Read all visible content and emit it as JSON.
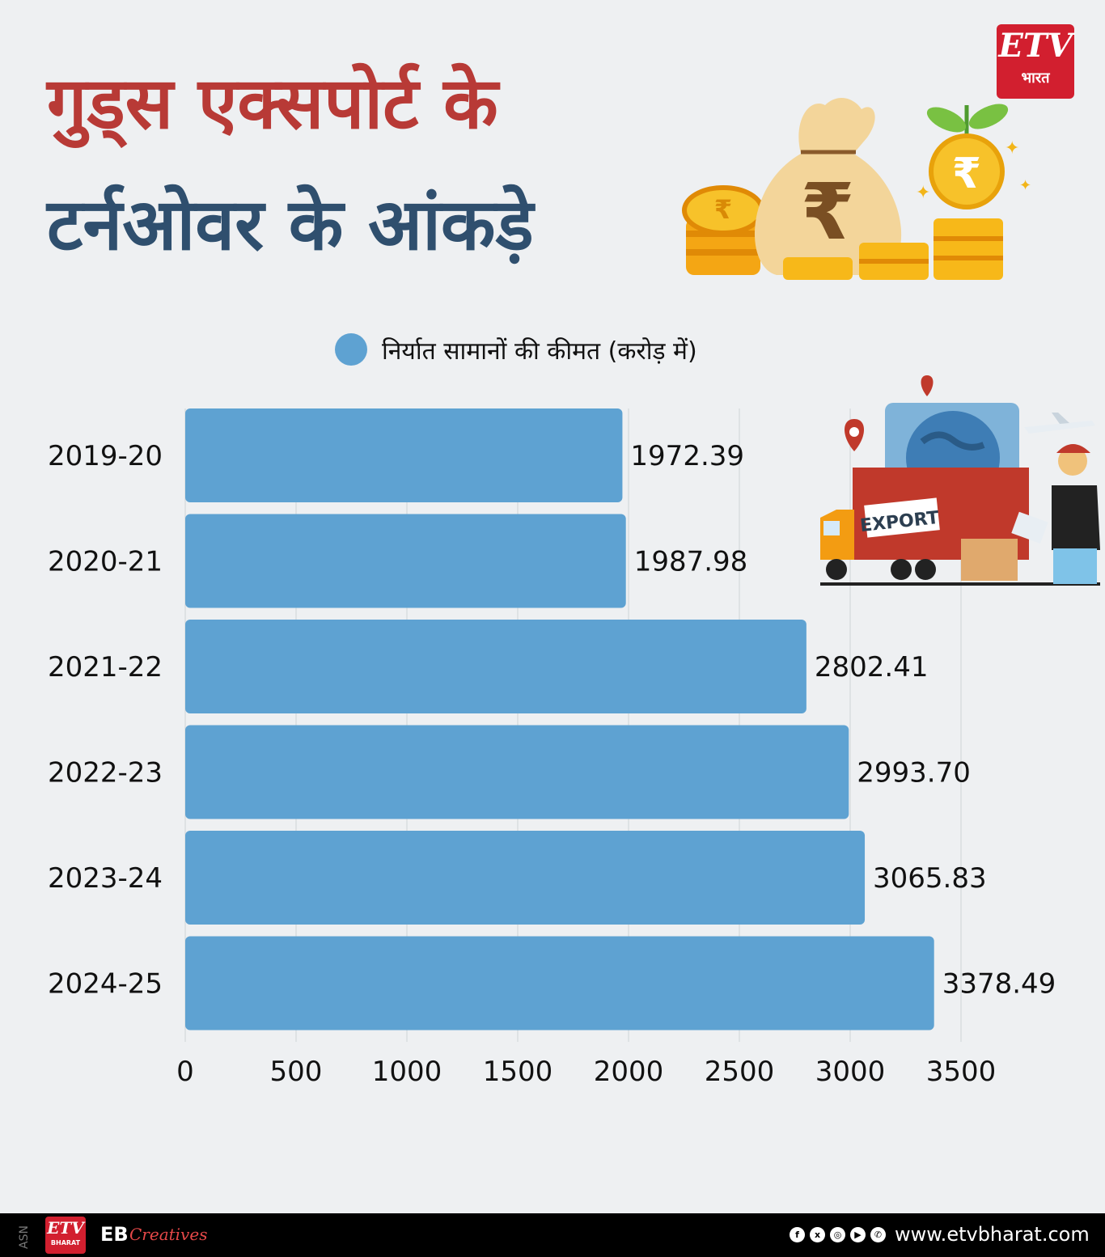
{
  "header": {
    "title_line1": "गुड्स एक्सपोर्ट के",
    "title_line2": "टर्नओवर के आंकड़े"
  },
  "brand": {
    "logo_mark": "ETV",
    "logo_sub": "भारत",
    "footer_asn": "ASN",
    "footer_logo_mark": "ETV",
    "footer_logo_sub": "BHARAT",
    "footer_eb": "EB",
    "footer_creatives": "Creatives",
    "website": "www.etvbharat.com",
    "social_icons": [
      "facebook-icon",
      "x-icon",
      "instagram-icon",
      "youtube-icon",
      "whatsapp-icon"
    ]
  },
  "illustration": {
    "truck_label": "EXPORT"
  },
  "colors": {
    "bar": "#5ea2d2",
    "title_red": "#b83a36",
    "title_blue": "#2f4f6e",
    "brand_red": "#d21f2f"
  },
  "chart_data": {
    "type": "bar",
    "orientation": "horizontal",
    "legend": "निर्यात सामानों की कीमत (करोड़ में)",
    "categories": [
      "2019-20",
      "2020-21",
      "2021-22",
      "2022-23",
      "2023-24",
      "2024-25"
    ],
    "values": [
      1972.39,
      1987.98,
      2802.41,
      2993.7,
      3065.83,
      3378.49
    ],
    "value_labels": [
      "1972.39",
      "1987.98",
      "2802.41",
      "2993.70",
      "3065.83",
      "3378.49"
    ],
    "xlim": [
      0,
      3500
    ],
    "xticks": [
      "0",
      "500",
      "1000",
      "1500",
      "2000",
      "2500",
      "3000",
      "3500"
    ],
    "grid": "vertical",
    "legend_position": "top"
  }
}
